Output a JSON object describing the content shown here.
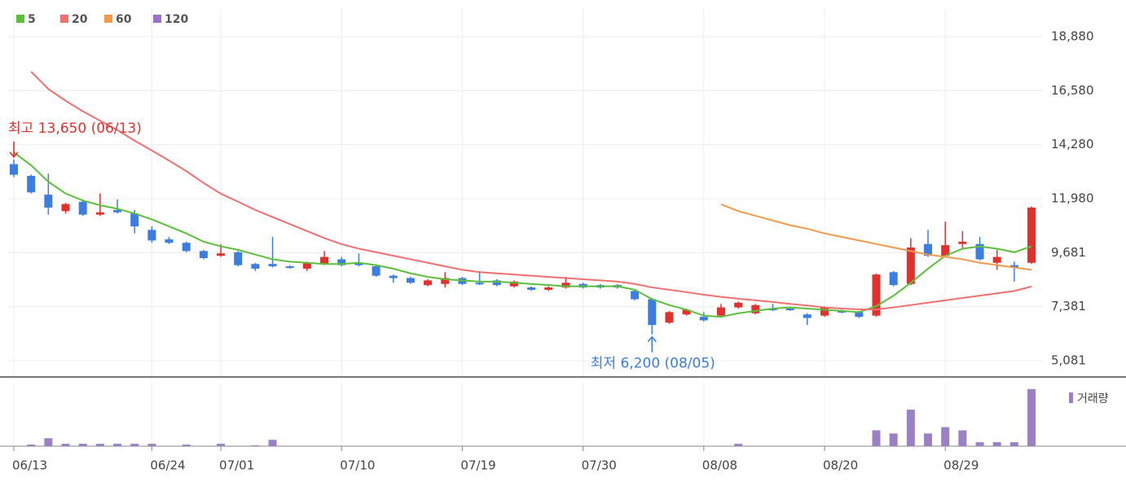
{
  "chart_data": {
    "type": "candlestick",
    "categories": [
      "06/13",
      null,
      null,
      null,
      null,
      null,
      null,
      null,
      "06/24",
      null,
      null,
      null,
      "07/01",
      null,
      null,
      null,
      null,
      null,
      null,
      "07/10",
      null,
      null,
      null,
      null,
      null,
      null,
      "07/19",
      null,
      null,
      null,
      null,
      null,
      null,
      "07/30",
      null,
      null,
      null,
      null,
      null,
      null,
      "08/08",
      null,
      null,
      null,
      null,
      null,
      null,
      "08/20",
      null,
      null,
      null,
      null,
      null,
      null,
      "08/29",
      null,
      null,
      null,
      null,
      null
    ],
    "open": [
      13450,
      12950,
      12150,
      11450,
      11850,
      11300,
      11500,
      11350,
      10650,
      10250,
      10100,
      9750,
      9550,
      9700,
      9200,
      9200,
      9100,
      9000,
      9200,
      9400,
      9250,
      9100,
      8700,
      8600,
      8300,
      8350,
      8600,
      8400,
      8500,
      8250,
      8200,
      8100,
      8200,
      8350,
      8300,
      8300,
      8050,
      7700,
      6700,
      7050,
      6950,
      7000,
      7350,
      7100,
      7300,
      7300,
      7050,
      7000,
      7200,
      7150,
      7000,
      8850,
      8350,
      10050,
      9550,
      10050,
      10050,
      9250,
      9150,
      9250
    ],
    "high": [
      13650,
      13000,
      13050,
      11800,
      11950,
      12200,
      11950,
      11500,
      10800,
      10350,
      10150,
      9800,
      10050,
      9750,
      9250,
      10350,
      9150,
      9300,
      9750,
      9500,
      9650,
      9150,
      8750,
      8650,
      8550,
      8850,
      8650,
      8900,
      8550,
      8500,
      8250,
      8250,
      8650,
      8400,
      8350,
      8350,
      8100,
      7750,
      7200,
      7300,
      7150,
      7500,
      7600,
      7500,
      7500,
      7350,
      7100,
      7400,
      7250,
      7200,
      8800,
      8900,
      10300,
      10650,
      11000,
      10600,
      10350,
      9800,
      9300,
      11650
    ],
    "low": [
      12900,
      12200,
      11300,
      11350,
      11250,
      11250,
      11350,
      10500,
      10100,
      10050,
      9700,
      9400,
      9500,
      9100,
      8900,
      9050,
      9000,
      8900,
      9150,
      9100,
      9100,
      8650,
      8400,
      8350,
      8250,
      8200,
      8300,
      8300,
      8250,
      8200,
      8050,
      8050,
      8150,
      8150,
      8150,
      8150,
      7650,
      6200,
      6650,
      7000,
      6750,
      6950,
      7300,
      7050,
      7200,
      7200,
      6600,
      6950,
      7100,
      6900,
      6950,
      8250,
      8300,
      9500,
      9500,
      9850,
      9350,
      8950,
      8450,
      9200
    ],
    "close": [
      13000,
      12250,
      11600,
      11750,
      11300,
      11400,
      11400,
      10800,
      10200,
      10100,
      9750,
      9450,
      9650,
      9150,
      9000,
      9100,
      9050,
      9250,
      9500,
      9150,
      9150,
      8700,
      8600,
      8400,
      8500,
      8600,
      8350,
      8350,
      8300,
      8450,
      8100,
      8200,
      8400,
      8200,
      8200,
      8200,
      7700,
      6600,
      7150,
      7250,
      6800,
      7350,
      7550,
      7450,
      7250,
      7250,
      6900,
      7350,
      7150,
      6950,
      8750,
      8300,
      9900,
      9550,
      10000,
      10150,
      9400,
      9500,
      9050,
      11600
    ],
    "up_color": "#e2302c",
    "down_color": "#3b7de0",
    "ylim": [
      4388,
      18880
    ],
    "yticks": [
      {
        "value": 18880,
        "label": "18,880"
      },
      {
        "value": 16580,
        "label": "16,580"
      },
      {
        "value": 14280,
        "label": "14,280"
      },
      {
        "value": 11980,
        "label": "11,980"
      },
      {
        "value": 9681,
        "label": "9,681"
      },
      {
        "value": 7381,
        "label": "7,381"
      },
      {
        "value": 5081,
        "label": "5,081"
      }
    ],
    "grid": true,
    "series": [
      {
        "name": "5",
        "color": "#5cbf3c",
        "values": [
          13950,
          13400,
          12700,
          12200,
          11900,
          11700,
          11550,
          11350,
          11100,
          10800,
          10500,
          10150,
          9950,
          9800,
          9600,
          9400,
          9300,
          9250,
          9200,
          9200,
          9250,
          9150,
          9000,
          8800,
          8650,
          8550,
          8500,
          8450,
          8450,
          8400,
          8350,
          8300,
          8250,
          8250,
          8250,
          8250,
          8100,
          7700,
          7450,
          7250,
          7000,
          6950,
          7100,
          7200,
          7300,
          7350,
          7300,
          7250,
          7200,
          7150,
          7400,
          7850,
          8400,
          9000,
          9550,
          9850,
          9950,
          9850,
          9700,
          9950
        ]
      },
      {
        "name": "20",
        "color": "#f07070",
        "values": [
          null,
          17390,
          16650,
          16150,
          15700,
          15300,
          14900,
          14450,
          14030,
          13600,
          13150,
          12650,
          12190,
          11850,
          11500,
          11200,
          10900,
          10600,
          10300,
          10040,
          9850,
          9700,
          9550,
          9400,
          9250,
          9100,
          8950,
          8850,
          8800,
          8750,
          8700,
          8650,
          8600,
          8550,
          8500,
          8450,
          8350,
          8200,
          8100,
          8000,
          7890,
          7800,
          7720,
          7650,
          7580,
          7500,
          7430,
          7350,
          7300,
          7270,
          7260,
          7350,
          7450,
          7550,
          7650,
          7750,
          7850,
          7950,
          8050,
          8240
        ]
      },
      {
        "name": "60",
        "color": "#f39a4a",
        "values": [
          null,
          null,
          null,
          null,
          null,
          null,
          null,
          null,
          null,
          null,
          null,
          null,
          null,
          null,
          null,
          null,
          null,
          null,
          null,
          null,
          null,
          null,
          null,
          null,
          null,
          null,
          null,
          null,
          null,
          null,
          null,
          null,
          null,
          null,
          null,
          null,
          null,
          null,
          null,
          null,
          null,
          11740,
          11450,
          11250,
          11050,
          10850,
          10700,
          10500,
          10350,
          10200,
          10050,
          9900,
          9750,
          9600,
          9500,
          9400,
          9250,
          9150,
          9050,
          8950
        ]
      },
      {
        "name": "120",
        "color": "#9b72c8",
        "values": [
          null,
          null,
          null,
          null,
          null,
          null,
          null,
          null,
          null,
          null,
          null,
          null,
          null,
          null,
          null,
          null,
          null,
          null,
          null,
          null,
          null,
          null,
          null,
          null,
          null,
          null,
          null,
          null,
          null,
          null,
          null,
          null,
          null,
          null,
          null,
          null,
          null,
          null,
          null,
          null,
          null,
          null,
          null,
          null,
          null,
          null,
          null,
          null,
          null,
          null,
          null,
          null,
          null,
          null,
          null,
          null,
          null,
          null,
          null,
          null
        ]
      }
    ],
    "annotations": [
      {
        "text": "최고 13,650 (06/13)",
        "color": "#e2302c"
      },
      {
        "text": "최저 6,200 (08/05)",
        "color": "#3b7de0"
      }
    ],
    "volume_label": "거래량",
    "volume_color": "#9b80c6",
    "volume_ylim": [
      0,
      80
    ],
    "volume": [
      0,
      2,
      10,
      3,
      3,
      3,
      3,
      3,
      3,
      0,
      2,
      0,
      3,
      0,
      1,
      8,
      0,
      0,
      0,
      0,
      0,
      0,
      0,
      0,
      0,
      0,
      0,
      0,
      0,
      0,
      0,
      0,
      0,
      0,
      0,
      0,
      0,
      0,
      0,
      0,
      0,
      0,
      3,
      0,
      0,
      0,
      0,
      0,
      0,
      0,
      20,
      16,
      46,
      16,
      24,
      20,
      5,
      5,
      5,
      72
    ]
  }
}
